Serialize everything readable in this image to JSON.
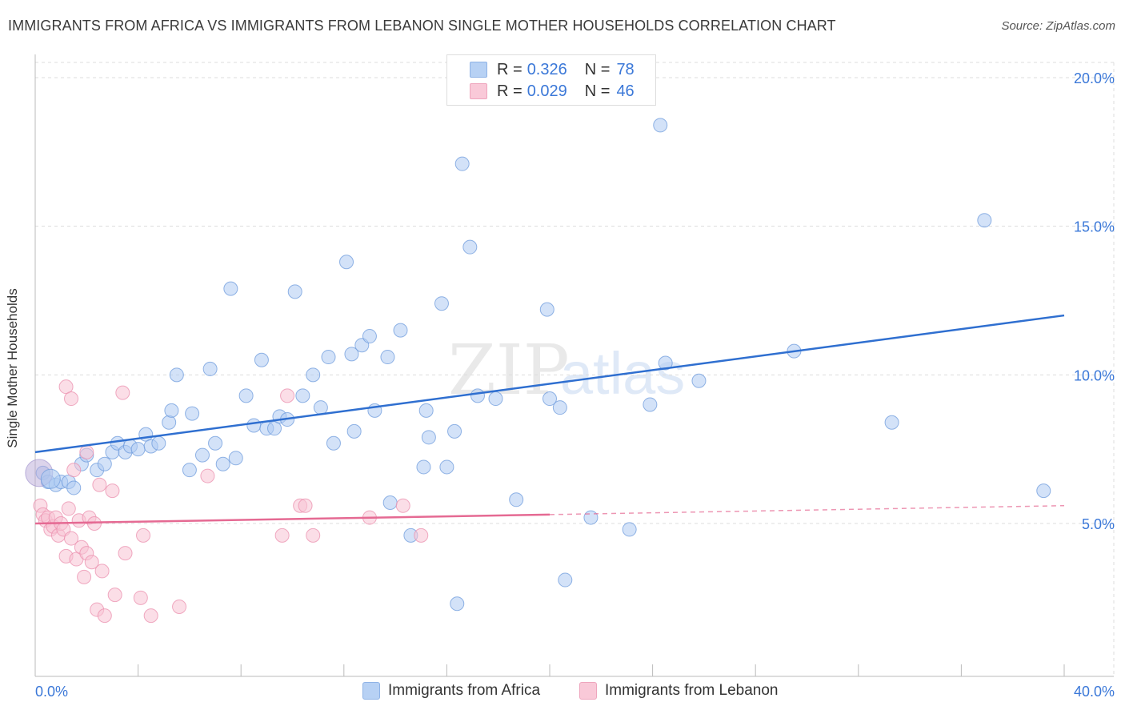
{
  "title": "IMMIGRANTS FROM AFRICA VS IMMIGRANTS FROM LEBANON SINGLE MOTHER HOUSEHOLDS CORRELATION CHART",
  "source": "Source: ZipAtlas.com",
  "watermark": {
    "zip": "ZIP",
    "atlas": "atlas"
  },
  "legend_top": [
    {
      "r_label": "R =",
      "r_value": "0.326",
      "n_label": "N =",
      "n_value": "78",
      "color": "#a9c8f0"
    },
    {
      "r_label": "R =",
      "r_value": "0.029",
      "n_label": "N =",
      "n_value": "46",
      "color": "#f6bcd0"
    }
  ],
  "chart_data": {
    "type": "scatter",
    "title": "IMMIGRANTS FROM AFRICA VS IMMIGRANTS FROM LEBANON SINGLE MOTHER HOUSEHOLDS CORRELATION CHART",
    "xlabel": "",
    "ylabel": "Single Mother Households",
    "xlim": [
      0,
      40
    ],
    "ylim": [
      0,
      20
    ],
    "x_tick_labels": [
      "0.0%",
      "40.0%"
    ],
    "y_tick_labels": [
      "5.0%",
      "10.0%",
      "15.0%",
      "20.0%"
    ],
    "y_ticks": [
      5,
      10,
      15,
      20
    ],
    "grid": true,
    "legend_position": "bottom",
    "series": [
      {
        "name": "Immigrants from Africa",
        "color": "#5b8fd6",
        "fill": "#aecbf2",
        "trend": {
          "x": [
            0,
            40
          ],
          "y": [
            7.4,
            12.0
          ],
          "dashed_from": null
        },
        "points": [
          [
            0.3,
            6.7
          ],
          [
            0.5,
            6.4
          ],
          [
            0.8,
            6.3
          ],
          [
            1.0,
            6.4
          ],
          [
            1.3,
            6.4
          ],
          [
            1.5,
            6.2
          ],
          [
            1.8,
            7.0
          ],
          [
            2.0,
            7.3
          ],
          [
            2.4,
            6.8
          ],
          [
            2.7,
            7.0
          ],
          [
            3.0,
            7.4
          ],
          [
            3.2,
            7.7
          ],
          [
            3.5,
            7.4
          ],
          [
            3.7,
            7.6
          ],
          [
            4.0,
            7.5
          ],
          [
            4.3,
            8.0
          ],
          [
            4.5,
            7.6
          ],
          [
            4.8,
            7.7
          ],
          [
            5.2,
            8.4
          ],
          [
            5.3,
            8.8
          ],
          [
            5.5,
            10.0
          ],
          [
            6.0,
            6.8
          ],
          [
            6.1,
            8.7
          ],
          [
            6.5,
            7.3
          ],
          [
            6.8,
            10.2
          ],
          [
            7.0,
            7.7
          ],
          [
            7.3,
            7.0
          ],
          [
            7.6,
            12.9
          ],
          [
            7.8,
            7.2
          ],
          [
            8.2,
            9.3
          ],
          [
            8.5,
            8.3
          ],
          [
            8.8,
            10.5
          ],
          [
            9.0,
            8.2
          ],
          [
            9.3,
            8.2
          ],
          [
            9.5,
            8.6
          ],
          [
            9.8,
            8.5
          ],
          [
            10.1,
            12.8
          ],
          [
            10.4,
            9.3
          ],
          [
            10.8,
            10.0
          ],
          [
            11.1,
            8.9
          ],
          [
            11.4,
            10.6
          ],
          [
            11.6,
            7.7
          ],
          [
            12.1,
            13.8
          ],
          [
            12.3,
            10.7
          ],
          [
            12.4,
            8.1
          ],
          [
            12.7,
            11.0
          ],
          [
            13.0,
            11.3
          ],
          [
            13.2,
            8.8
          ],
          [
            13.7,
            10.6
          ],
          [
            13.8,
            5.7
          ],
          [
            14.2,
            11.5
          ],
          [
            14.6,
            4.6
          ],
          [
            15.1,
            6.9
          ],
          [
            15.2,
            8.8
          ],
          [
            15.3,
            7.9
          ],
          [
            15.8,
            12.4
          ],
          [
            16.0,
            6.9
          ],
          [
            16.3,
            8.1
          ],
          [
            16.4,
            2.3
          ],
          [
            16.6,
            17.1
          ],
          [
            16.9,
            14.3
          ],
          [
            17.2,
            9.3
          ],
          [
            17.9,
            9.2
          ],
          [
            18.7,
            5.8
          ],
          [
            19.9,
            12.2
          ],
          [
            20.0,
            9.2
          ],
          [
            20.4,
            8.9
          ],
          [
            20.6,
            3.1
          ],
          [
            21.6,
            5.2
          ],
          [
            23.1,
            4.8
          ],
          [
            23.9,
            9.0
          ],
          [
            24.3,
            18.4
          ],
          [
            24.5,
            10.4
          ],
          [
            25.8,
            9.8
          ],
          [
            29.5,
            10.8
          ],
          [
            33.3,
            8.4
          ],
          [
            36.9,
            15.2
          ],
          [
            39.2,
            6.1
          ]
        ]
      },
      {
        "name": "Immigrants from Lebanon",
        "color": "#e56a93",
        "fill": "#f7c2d3",
        "trend": {
          "x": [
            0,
            20
          ],
          "y": [
            5.0,
            5.3
          ],
          "dashed_from": 20,
          "dashed_to": [
            40,
            5.6
          ]
        },
        "points": [
          [
            0.2,
            5.6
          ],
          [
            0.3,
            5.3
          ],
          [
            0.4,
            5.1
          ],
          [
            0.5,
            5.2
          ],
          [
            0.6,
            4.8
          ],
          [
            0.7,
            4.9
          ],
          [
            0.8,
            5.2
          ],
          [
            0.9,
            4.6
          ],
          [
            1.0,
            5.0
          ],
          [
            1.1,
            4.8
          ],
          [
            1.2,
            3.9
          ],
          [
            1.3,
            5.5
          ],
          [
            1.4,
            4.5
          ],
          [
            1.5,
            6.8
          ],
          [
            1.6,
            3.8
          ],
          [
            1.7,
            5.1
          ],
          [
            1.8,
            4.2
          ],
          [
            1.9,
            3.2
          ],
          [
            2.0,
            4.0
          ],
          [
            2.1,
            5.2
          ],
          [
            2.2,
            3.7
          ],
          [
            2.3,
            5.0
          ],
          [
            2.4,
            2.1
          ],
          [
            2.5,
            6.3
          ],
          [
            2.6,
            3.4
          ],
          [
            2.7,
            1.9
          ],
          [
            1.2,
            9.6
          ],
          [
            1.4,
            9.2
          ],
          [
            2.0,
            7.4
          ],
          [
            3.0,
            6.1
          ],
          [
            3.1,
            2.6
          ],
          [
            3.4,
            9.4
          ],
          [
            3.5,
            4.0
          ],
          [
            4.1,
            2.5
          ],
          [
            4.2,
            4.6
          ],
          [
            4.5,
            1.9
          ],
          [
            5.6,
            2.2
          ],
          [
            6.7,
            6.6
          ],
          [
            9.6,
            4.6
          ],
          [
            9.8,
            9.3
          ],
          [
            10.3,
            5.6
          ],
          [
            10.5,
            5.6
          ],
          [
            10.8,
            4.6
          ],
          [
            13.0,
            5.2
          ],
          [
            14.3,
            5.6
          ],
          [
            15.0,
            4.6
          ]
        ]
      }
    ]
  }
}
